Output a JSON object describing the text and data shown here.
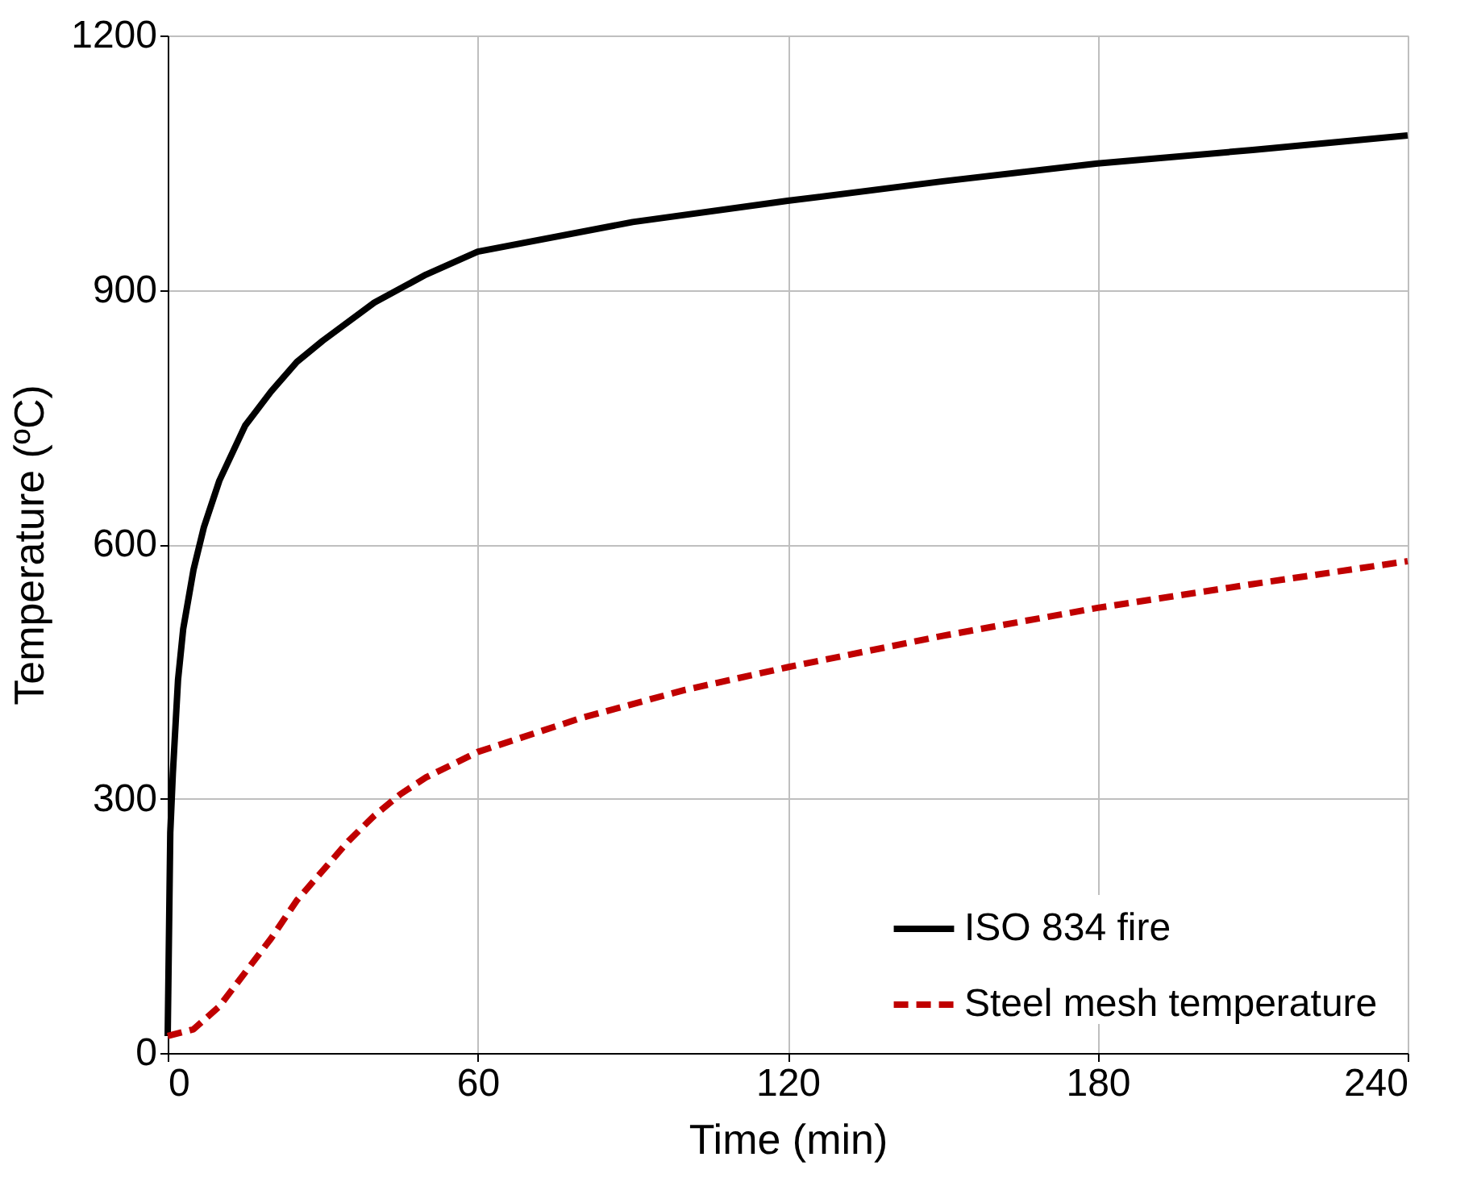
{
  "chart_data": {
    "type": "line",
    "xlabel": "Time (min)",
    "ylabel": "Temperature (ºC)",
    "xlim": [
      0,
      240
    ],
    "xticks": [
      0,
      60,
      120,
      180,
      240
    ],
    "ylim": [
      0,
      1200
    ],
    "yticks": [
      0,
      300,
      600,
      900,
      1200
    ],
    "grid": true,
    "legend": "bottom right",
    "marker": "none",
    "series": [
      {
        "name": "ISO 834 fire",
        "color": "#000000",
        "line_style": "solid",
        "x": [
          0,
          0.5,
          1,
          2,
          3,
          5,
          7,
          10,
          15,
          20,
          25,
          30,
          40,
          50,
          60,
          90,
          120,
          150,
          180,
          210,
          240
        ],
        "values": [
          20,
          260,
          330,
          440,
          500,
          570,
          620,
          675,
          740,
          780,
          815,
          840,
          885,
          918,
          945,
          980,
          1005,
          1028,
          1049,
          1065,
          1082
        ]
      },
      {
        "name": "Steel mesh temperature",
        "color": "#c00000",
        "line_style": "dashed",
        "x": [
          0,
          5,
          10,
          15,
          20,
          25,
          30,
          35,
          40,
          45,
          50,
          55,
          60,
          80,
          100,
          120,
          150,
          180,
          210,
          240
        ],
        "values": [
          20,
          28,
          55,
          95,
          135,
          180,
          215,
          250,
          280,
          305,
          325,
          340,
          355,
          395,
          428,
          455,
          492,
          525,
          553,
          580
        ]
      }
    ]
  }
}
